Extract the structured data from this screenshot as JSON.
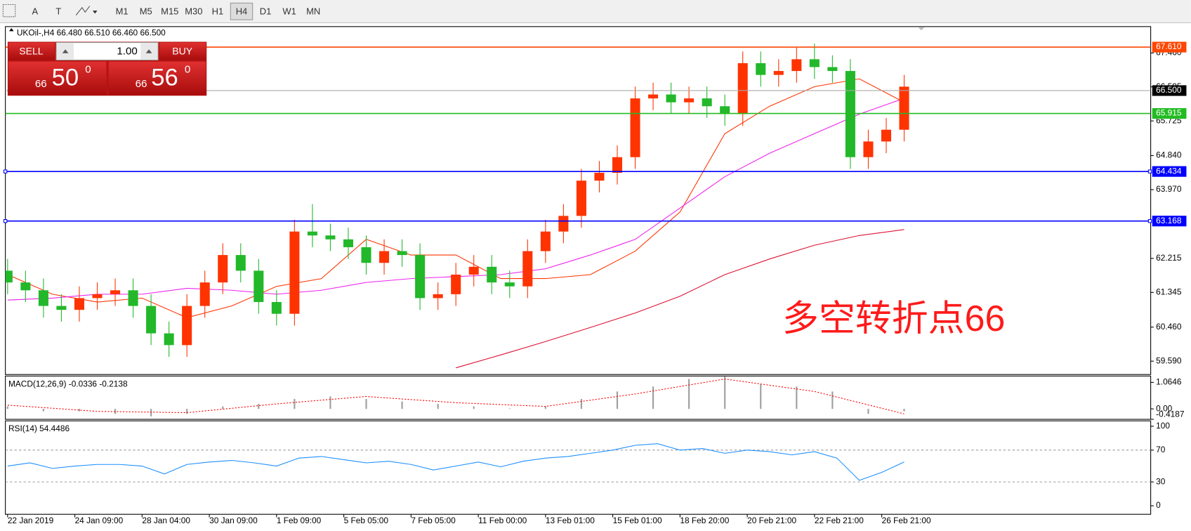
{
  "toolbar": {
    "tools": [
      "A",
      "T"
    ],
    "timeframes": [
      "M1",
      "M5",
      "M15",
      "M30",
      "H1",
      "H4",
      "D1",
      "W1",
      "MN"
    ],
    "active_timeframe": 5
  },
  "trade_panel": {
    "sell": "SELL",
    "buy": "BUY",
    "lot": "1.00",
    "bid": {
      "big": "66",
      "main": "50",
      "sup": "0"
    },
    "ask": {
      "big": "66",
      "main": "56",
      "sup": "0"
    }
  },
  "chart_data": [
    {
      "type": "candlestick",
      "title": "UKOil-,H4 66.480 66.510 66.460 66.500",
      "annotation": "多空转折点66",
      "up_color": "#ff3300",
      "down_color": "#22b82a",
      "x": [
        0,
        4,
        8,
        12,
        16,
        20,
        24,
        28,
        32,
        36,
        40,
        44,
        48,
        52,
        56,
        60,
        64,
        68,
        72,
        76,
        80,
        84,
        88,
        92,
        96,
        100,
        104,
        108,
        112,
        116,
        120,
        124,
        128,
        132,
        136,
        140,
        144,
        148,
        152,
        156,
        160,
        164,
        168,
        172,
        176,
        180,
        184,
        188,
        192,
        196,
        200
      ],
      "open": [
        61.9,
        61.6,
        61.4,
        61.0,
        60.9,
        61.2,
        61.3,
        61.4,
        61.0,
        60.3,
        60.0,
        61.0,
        61.6,
        62.3,
        61.9,
        61.1,
        60.8,
        62.9,
        62.8,
        62.7,
        62.5,
        62.1,
        62.4,
        62.3,
        61.2,
        61.3,
        61.8,
        62.0,
        61.6,
        61.5,
        62.4,
        62.9,
        63.3,
        64.2,
        64.4,
        64.8,
        66.3,
        66.4,
        66.2,
        66.3,
        66.1,
        65.9,
        67.2,
        66.9,
        67.0,
        67.3,
        67.1,
        67.0,
        64.8,
        65.2,
        65.5
      ],
      "high": [
        62.2,
        61.9,
        61.7,
        61.3,
        61.5,
        61.6,
        61.7,
        61.7,
        61.3,
        60.6,
        61.3,
        61.9,
        62.6,
        62.6,
        62.2,
        61.4,
        63.2,
        63.6,
        63.1,
        63.0,
        62.8,
        62.7,
        62.7,
        62.6,
        61.6,
        62.1,
        62.3,
        62.3,
        61.9,
        62.7,
        63.2,
        63.6,
        64.5,
        64.7,
        65.1,
        66.6,
        66.7,
        66.7,
        66.6,
        66.6,
        66.4,
        67.5,
        67.5,
        67.3,
        67.6,
        67.7,
        67.4,
        67.3,
        65.5,
        65.8,
        66.9
      ],
      "low": [
        61.3,
        61.1,
        60.7,
        60.6,
        60.6,
        60.9,
        61.0,
        60.7,
        60.0,
        59.7,
        59.7,
        60.7,
        61.3,
        61.6,
        60.8,
        60.5,
        60.5,
        62.5,
        62.4,
        62.2,
        61.8,
        61.8,
        62.0,
        60.9,
        60.9,
        61.0,
        61.5,
        61.3,
        61.2,
        61.2,
        62.1,
        62.6,
        63.0,
        63.9,
        64.1,
        64.5,
        66.0,
        65.9,
        65.9,
        65.8,
        65.6,
        65.6,
        66.6,
        66.6,
        66.7,
        66.8,
        66.7,
        64.5,
        64.5,
        64.9,
        65.2
      ],
      "close": [
        61.6,
        61.4,
        61.0,
        60.9,
        61.2,
        61.3,
        61.4,
        61.0,
        60.3,
        60.0,
        61.0,
        61.6,
        62.3,
        61.9,
        61.1,
        60.8,
        62.9,
        62.8,
        62.7,
        62.5,
        62.1,
        62.4,
        62.3,
        61.2,
        61.3,
        61.8,
        62.0,
        61.6,
        61.5,
        62.4,
        62.9,
        63.3,
        64.2,
        64.4,
        64.8,
        66.3,
        66.4,
        66.2,
        66.3,
        66.1,
        65.9,
        67.2,
        66.9,
        67.0,
        67.3,
        67.1,
        67.0,
        64.8,
        65.2,
        65.5,
        66.6
      ],
      "series": [
        {
          "color": "#ff3300",
          "x": [
            0,
            10,
            20,
            30,
            40,
            50,
            60,
            70,
            80,
            90,
            100,
            110,
            120,
            130,
            140,
            150,
            160,
            170,
            180,
            190,
            200
          ],
          "values": [
            61.8,
            61.3,
            61.1,
            61.2,
            60.7,
            61.0,
            61.5,
            61.7,
            62.7,
            62.3,
            62.3,
            61.7,
            61.7,
            61.8,
            62.4,
            63.4,
            65.4,
            66.1,
            66.6,
            66.8,
            66.2
          ]
        },
        {
          "color": "#ee22ee",
          "x": [
            0,
            10,
            20,
            30,
            40,
            50,
            60,
            70,
            80,
            90,
            100,
            110,
            120,
            130,
            140,
            150,
            160,
            170,
            180,
            190,
            200
          ],
          "values": [
            61.15,
            61.2,
            61.3,
            61.3,
            61.45,
            61.4,
            61.3,
            61.4,
            61.6,
            61.7,
            61.75,
            61.8,
            61.95,
            62.3,
            62.7,
            63.5,
            64.3,
            64.9,
            65.4,
            65.9,
            66.3
          ]
        },
        {
          "color": "#dd1133",
          "x": [
            0,
            10,
            20,
            30,
            40,
            50,
            60,
            70,
            80,
            90,
            100,
            110,
            120,
            130,
            140,
            150,
            160,
            170,
            180,
            190,
            200
          ],
          "values": [
            null,
            null,
            null,
            null,
            null,
            null,
            null,
            null,
            null,
            null,
            59.42,
            59.75,
            60.09,
            60.45,
            60.82,
            61.25,
            61.8,
            62.2,
            62.55,
            62.8,
            62.95
          ]
        }
      ],
      "levels": [
        {
          "value": 67.61,
          "label": "67.610",
          "color": "#ff4500"
        },
        {
          "value": 66.5,
          "label": "66.500",
          "color": "#000000"
        },
        {
          "value": 65.915,
          "label": "65.915",
          "color": "#22bb22"
        },
        {
          "value": 64.434,
          "label": "64.434",
          "color": "#0000ff"
        },
        {
          "value": 63.168,
          "label": "63.168",
          "color": "#0000ff"
        }
      ],
      "xlim": [
        -0.5,
        255
      ],
      "xticks": [
        {
          "value": 0,
          "label": "22 Jan 2019"
        },
        {
          "value": 15,
          "label": "24 Jan 09:00"
        },
        {
          "value": 30,
          "label": "28 Jan 04:00"
        },
        {
          "value": 45,
          "label": "30 Jan 09:00"
        },
        {
          "value": 60,
          "label": "1 Feb 09:00"
        },
        {
          "value": 75,
          "label": "5 Feb 05:00"
        },
        {
          "value": 90,
          "label": "7 Feb 05:00"
        },
        {
          "value": 105,
          "label": "11 Feb 00:00"
        },
        {
          "value": 120,
          "label": "13 Feb 01:00"
        },
        {
          "value": 135,
          "label": "15 Feb 01:00"
        },
        {
          "value": 150,
          "label": "18 Feb 20:00"
        },
        {
          "value": 165,
          "label": "20 Feb 21:00"
        },
        {
          "value": 180,
          "label": "22 Feb 21:00"
        },
        {
          "value": 195,
          "label": "26 Feb 21:00"
        }
      ],
      "ylim": [
        59.249,
        68.134
      ],
      "yticks": [
        {
          "value": 67.46,
          "label": "67.460"
        },
        66.595,
        65.725,
        {
          "value": 64.84,
          "label": "64.840"
        },
        {
          "value": 63.97,
          "label": "63.970"
        },
        62.215,
        61.345,
        {
          "value": 60.46,
          "label": "60.460"
        },
        {
          "value": 59.59,
          "label": "59.590"
        }
      ]
    },
    {
      "type": "macd",
      "title": "MACD(12,26,9) -0.0336 -0.2138",
      "color": "#a0a0a0",
      "signal_color": "#ff0000",
      "x": [
        0,
        8,
        16,
        24,
        32,
        40,
        48,
        56,
        64,
        72,
        80,
        88,
        96,
        104,
        112,
        120,
        128,
        136,
        144,
        152,
        160,
        168,
        176,
        184,
        192,
        200
      ],
      "values": [
        0.1,
        -0.1,
        -0.1,
        -0.2,
        -0.3,
        -0.2,
        0.1,
        0.2,
        0.4,
        0.5,
        0.4,
        0.3,
        0.2,
        0.1,
        0.02,
        0.1,
        0.4,
        0.7,
        0.9,
        1.2,
        1.3,
        1.0,
        0.9,
        0.7,
        -0.2,
        -0.1
      ],
      "signal_x": [
        0,
        20,
        40,
        60,
        80,
        100,
        120,
        140,
        160,
        180,
        200
      ],
      "signal": [
        0.15,
        -0.1,
        -0.15,
        0.2,
        0.5,
        0.25,
        0.1,
        0.6,
        1.2,
        0.7,
        -0.2
      ],
      "xlim": [
        -0.5,
        255
      ],
      "ylim": [
        -0.42,
        1.32
      ],
      "yticks": [
        1.0646,
        {
          "value": 0,
          "label": "0.00"
        },
        -0.4187
      ]
    },
    {
      "type": "line",
      "title": "RSI(14) 54.4486",
      "color": "#1e90ff",
      "x": [
        0,
        5,
        10,
        15,
        20,
        25,
        30,
        35,
        40,
        45,
        50,
        55,
        60,
        65,
        70,
        75,
        80,
        85,
        90,
        95,
        100,
        105,
        110,
        115,
        120,
        125,
        130,
        135,
        140,
        145,
        150,
        155,
        160,
        165,
        170,
        175,
        180,
        185,
        190,
        195,
        200
      ],
      "values": [
        50,
        54,
        47,
        50,
        52,
        52,
        50,
        40,
        52,
        55,
        57,
        54,
        50,
        60,
        62,
        58,
        54,
        56,
        52,
        45,
        50,
        55,
        49,
        56,
        60,
        62,
        66,
        70,
        76,
        78,
        70,
        72,
        66,
        70,
        68,
        64,
        68,
        60,
        32,
        42,
        55
      ],
      "xlim": [
        -0.5,
        255
      ],
      "ylim": [
        -10.7,
        106.8
      ],
      "yticks": [
        100,
        70,
        30,
        0
      ],
      "dashed_ticks": [
        70,
        30
      ]
    }
  ]
}
